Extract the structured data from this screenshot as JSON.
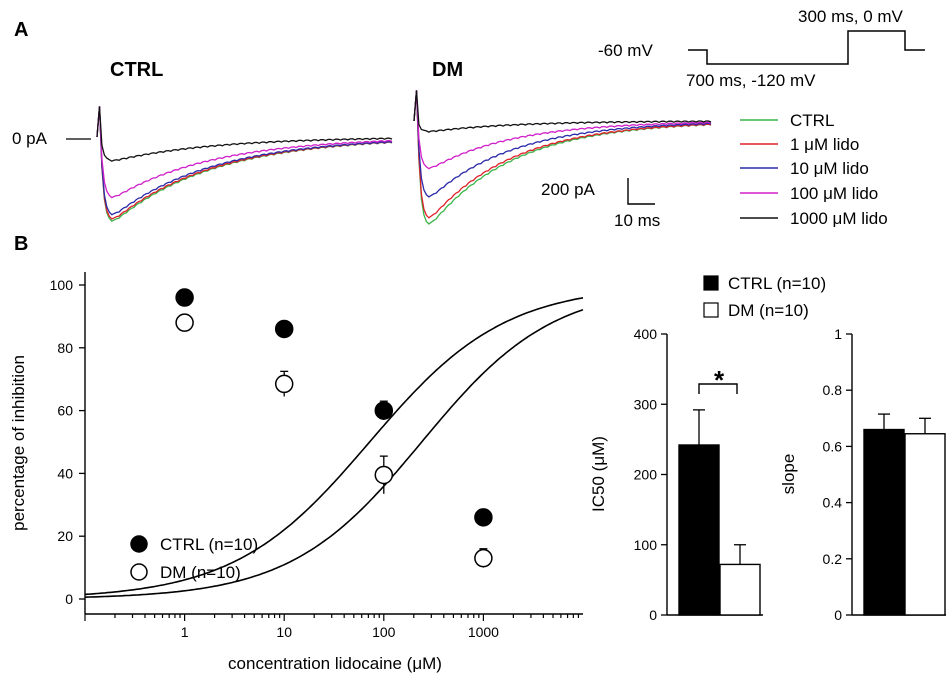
{
  "panel_a": {
    "label": "A",
    "ctrl_label": "CTRL",
    "dm_label": "DM",
    "zero_label": "0 pA",
    "protocol": {
      "holding": "-60 mV",
      "prepulse": "700 ms, -120 mV",
      "test": "300 ms, 0 mV"
    },
    "scale_bar": {
      "current": "200 pA",
      "time": "10 ms"
    },
    "legend": [
      {
        "name": "CTRL",
        "color": "#3cb44b"
      },
      {
        "name": "1 μM lido",
        "color": "#e0202a"
      },
      {
        "name": "10 μM lido",
        "color": "#2a2aa8"
      },
      {
        "name": "100 μM lido",
        "color": "#d020c8"
      },
      {
        "name": "1000 μM lido",
        "color": "#111111"
      }
    ]
  },
  "panel_b": {
    "label": "B"
  },
  "chart_data": [
    {
      "type": "scatter",
      "xlabel": "concentration lidocaine (μM)",
      "ylabel": "percentage of inhibition",
      "xscale": "log",
      "xlim": [
        0.1,
        10000
      ],
      "ylim": [
        0,
        100
      ],
      "xticks": [
        "1",
        "10",
        "100",
        "1000"
      ],
      "yticks": [
        "0",
        "20",
        "40",
        "60",
        "80",
        "100"
      ],
      "legend_position": "bottom-left",
      "series": [
        {
          "name": "CTRL (n=10)",
          "marker": "filled-circle",
          "x": [
            1,
            10,
            100,
            1000
          ],
          "y": [
            96,
            86,
            60,
            26
          ],
          "error": [
            1,
            1,
            3,
            1.5
          ],
          "fit": {
            "ic50": 240,
            "slope": 0.66
          }
        },
        {
          "name": "DM (n=10)",
          "marker": "open-circle",
          "x": [
            1,
            10,
            100,
            1000
          ],
          "y": [
            88,
            68.5,
            39.5,
            13
          ],
          "error": [
            1.5,
            4,
            6,
            3
          ],
          "fit": {
            "ic50": 72,
            "slope": 0.64
          }
        }
      ]
    },
    {
      "type": "bar",
      "ylabel": "IC50 (μM)",
      "ylim": [
        0,
        400
      ],
      "yticks": [
        "0",
        "100",
        "200",
        "300",
        "400"
      ],
      "categories": [
        "CTRL (n=10)",
        "DM (n=10)"
      ],
      "values": [
        242,
        72
      ],
      "errors": [
        50,
        28
      ],
      "colors": [
        "#000000",
        "#ffffff"
      ],
      "annotation": "*"
    },
    {
      "type": "bar",
      "ylabel": "slope",
      "ylim": [
        0,
        1
      ],
      "yticks": [
        "0",
        "0.2",
        "0.4",
        "0.6",
        "0.8",
        "1"
      ],
      "categories": [
        "CTRL (n=10)",
        "DM (n=10)"
      ],
      "values": [
        0.66,
        0.645
      ],
      "errors": [
        0.055,
        0.055
      ],
      "colors": [
        "#000000",
        "#ffffff"
      ]
    }
  ]
}
